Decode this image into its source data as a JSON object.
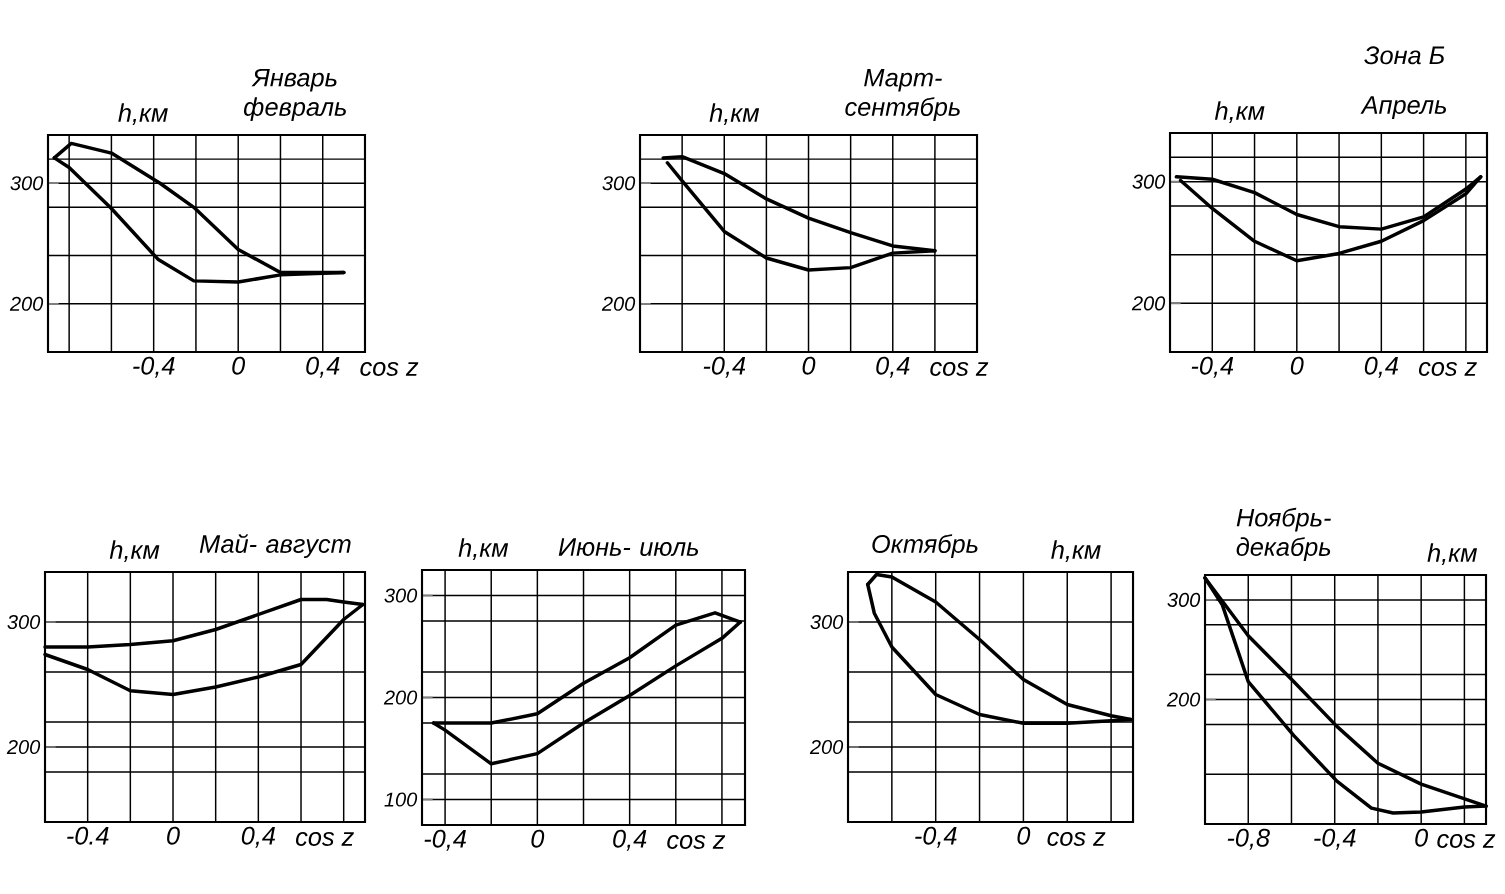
{
  "chart_data": [
    {
      "type": "line",
      "title": "Январь февраль",
      "xlabel": "cos z",
      "ylabel": "h,км",
      "grid": true,
      "xlim": [
        -0.9,
        0.6
      ],
      "ylim": [
        160,
        340
      ],
      "xticks": [
        {
          "value": -0.8,
          "label": null
        },
        {
          "value": -0.6,
          "label": null
        },
        {
          "value": -0.4,
          "label": "-0,4"
        },
        {
          "value": -0.2,
          "label": null
        },
        0,
        {
          "value": 0.2,
          "label": null
        },
        {
          "value": 0.4,
          "label": "0,4"
        }
      ],
      "yticks": [
        200,
        {
          "value": 240,
          "label": null
        },
        {
          "value": 280,
          "label": null
        },
        300,
        {
          "value": 320,
          "label": null
        }
      ],
      "series": [
        {
          "color": "#000000",
          "x": [
            -0.87,
            -0.79,
            -0.6,
            -0.37,
            -0.21,
            0,
            0.2,
            0.5
          ],
          "values": [
            321,
            333,
            325,
            300,
            280,
            245,
            226,
            226
          ]
        },
        {
          "color": "#000000",
          "x": [
            0.5,
            0.2,
            0,
            -0.21,
            -0.38,
            -0.6,
            -0.8,
            -0.87
          ],
          "values": [
            226,
            224,
            218,
            219,
            237,
            279,
            313,
            321
          ]
        }
      ]
    },
    {
      "type": "line",
      "title": "Март- сентябрь",
      "xlabel": "cos z",
      "ylabel": "h,км",
      "grid": true,
      "xlim": [
        -0.8,
        0.8
      ],
      "ylim": [
        160,
        340
      ],
      "xticks": [
        {
          "value": -0.6,
          "label": null
        },
        {
          "value": -0.4,
          "label": "-0,4"
        },
        {
          "value": -0.2,
          "label": null
        },
        0,
        {
          "value": 0.2,
          "label": null
        },
        {
          "value": 0.4,
          "label": "0,4"
        },
        {
          "value": 0.6,
          "label": null
        }
      ],
      "yticks": [
        200,
        {
          "value": 240,
          "label": null
        },
        {
          "value": 280,
          "label": null
        },
        300,
        {
          "value": 320,
          "label": null
        }
      ],
      "series": [
        {
          "color": "#000000",
          "x": [
            -0.69,
            -0.6,
            -0.4,
            -0.2,
            0,
            0.2,
            0.4,
            0.6
          ],
          "values": [
            321,
            322,
            308,
            287,
            271,
            259,
            248,
            244
          ]
        },
        {
          "color": "#000000",
          "x": [
            0.6,
            0.4,
            0.2,
            0,
            -0.2,
            -0.4,
            -0.6,
            -0.67
          ],
          "values": [
            244,
            242,
            230,
            228,
            238,
            260,
            302,
            317
          ]
        }
      ]
    },
    {
      "type": "line",
      "title": "Апрель",
      "xlabel": "cos z",
      "ylabel": "h,км",
      "annotations": [
        "Зона Б"
      ],
      "grid": true,
      "xlim": [
        -0.6,
        0.9
      ],
      "ylim": [
        160,
        340
      ],
      "xticks": [
        {
          "value": -0.4,
          "label": "-0,4"
        },
        {
          "value": -0.2,
          "label": null
        },
        0,
        {
          "value": 0.2,
          "label": null
        },
        {
          "value": 0.4,
          "label": "0,4"
        },
        {
          "value": 0.6,
          "label": null
        },
        {
          "value": 0.8,
          "label": null
        }
      ],
      "yticks": [
        200,
        {
          "value": 240,
          "label": null
        },
        {
          "value": 280,
          "label": null
        },
        300,
        {
          "value": 320,
          "label": null
        }
      ],
      "series": [
        {
          "color": "#000000",
          "x": [
            -0.57,
            -0.4,
            -0.2,
            0,
            0.2,
            0.4,
            0.6,
            0.8,
            0.87
          ],
          "values": [
            304,
            302,
            291,
            273,
            263,
            261,
            271,
            294,
            304
          ]
        },
        {
          "color": "#000000",
          "x": [
            0.87,
            0.8,
            0.6,
            0.4,
            0.2,
            0,
            -0.2,
            -0.4,
            -0.55
          ],
          "values": [
            304,
            290,
            268,
            251,
            241,
            235,
            251,
            278,
            301
          ]
        }
      ]
    },
    {
      "type": "line",
      "title": "Май- август",
      "xlabel": "cos z",
      "ylabel": "h,км",
      "grid": true,
      "xlim": [
        -0.6,
        0.9
      ],
      "ylim": [
        140,
        340
      ],
      "xticks": [
        {
          "value": -0.4,
          "label": "-0.4"
        },
        {
          "value": -0.2,
          "label": null
        },
        0,
        {
          "value": 0.2,
          "label": null
        },
        {
          "value": 0.4,
          "label": "0,4"
        },
        {
          "value": 0.6,
          "label": null
        },
        {
          "value": 0.8,
          "label": null
        }
      ],
      "yticks": [
        {
          "value": 180,
          "label": null
        },
        200,
        {
          "value": 220,
          "label": null
        },
        {
          "value": 260,
          "label": null
        },
        300
      ],
      "series": [
        {
          "color": "#000000",
          "x": [
            -0.6,
            -0.4,
            -0.2,
            0,
            0.2,
            0.4,
            0.6,
            0.72,
            0.8,
            0.89
          ],
          "values": [
            280,
            280,
            282,
            285,
            294,
            306,
            318,
            318,
            316,
            314
          ]
        },
        {
          "color": "#000000",
          "x": [
            0.89,
            0.8,
            0.6,
            0.4,
            0.2,
            0,
            -0.2,
            -0.4,
            -0.6
          ],
          "values": [
            314,
            302,
            266,
            256,
            248,
            242,
            245,
            262,
            274
          ]
        }
      ]
    },
    {
      "type": "line",
      "title": "Июнь- июль",
      "xlabel": "cos z",
      "ylabel": "h,км",
      "grid": true,
      "xlim": [
        -0.5,
        0.9
      ],
      "ylim": [
        75,
        325
      ],
      "xticks": [
        {
          "value": -0.4,
          "label": "-0,4"
        },
        {
          "value": -0.2,
          "label": null
        },
        0,
        {
          "value": 0.2,
          "label": null
        },
        {
          "value": 0.4,
          "label": "0,4"
        },
        {
          "value": 0.6,
          "label": null
        },
        {
          "value": 0.8,
          "label": null
        }
      ],
      "yticks": [
        100,
        {
          "value": 125,
          "label": null
        },
        {
          "value": 175,
          "label": null
        },
        200,
        {
          "value": 225,
          "label": null
        },
        {
          "value": 275,
          "label": null
        },
        300
      ],
      "series": [
        {
          "color": "#000000",
          "x": [
            -0.45,
            -0.2,
            0,
            0.2,
            0.4,
            0.6,
            0.77,
            0.88
          ],
          "values": [
            175,
            175,
            184,
            214,
            239,
            271,
            283,
            274
          ]
        },
        {
          "color": "#000000",
          "x": [
            0.88,
            0.8,
            0.6,
            0.4,
            0.2,
            0,
            -0.2,
            -0.4,
            -0.45
          ],
          "values": [
            274,
            258,
            231,
            202,
            175,
            145,
            135,
            168,
            175
          ]
        }
      ]
    },
    {
      "type": "line",
      "title": "Октябрь",
      "xlabel": "cos z",
      "ylabel": "h,км",
      "grid": true,
      "xlim": [
        -0.8,
        0.5
      ],
      "ylim": [
        140,
        340
      ],
      "xticks": [
        {
          "value": -0.6,
          "label": null
        },
        {
          "value": -0.4,
          "label": "-0,4"
        },
        {
          "value": -0.2,
          "label": null
        },
        0,
        {
          "value": 0.2,
          "label": null
        },
        {
          "value": 0.4,
          "label": null
        }
      ],
      "yticks": [
        {
          "value": 180,
          "label": null
        },
        200,
        {
          "value": 220,
          "label": null
        },
        {
          "value": 260,
          "label": null
        },
        300
      ],
      "series": [
        {
          "color": "#000000",
          "x": [
            -0.71,
            -0.67,
            -0.6,
            -0.4,
            -0.2,
            0,
            0.2,
            0.4,
            0.49
          ],
          "values": [
            330,
            338,
            336,
            316,
            286,
            254,
            234,
            225,
            222
          ]
        },
        {
          "color": "#000000",
          "x": [
            0.49,
            0.4,
            0.2,
            0,
            -0.2,
            -0.4,
            -0.6,
            -0.68,
            -0.71
          ],
          "values": [
            222,
            221,
            219,
            219,
            226,
            242,
            280,
            307,
            330
          ]
        }
      ]
    },
    {
      "type": "line",
      "title": "Ноябрь- декабрь",
      "xlabel": "cos z",
      "ylabel": "h,км",
      "grid": true,
      "xlim": [
        -1.0,
        0.3
      ],
      "ylim": [
        75,
        325
      ],
      "xticks": [
        {
          "value": -0.8,
          "label": "-0,8"
        },
        {
          "value": -0.6,
          "label": null
        },
        {
          "value": -0.4,
          "label": "-0,4"
        },
        {
          "value": -0.2,
          "label": null
        },
        0,
        {
          "value": 0.2,
          "label": null
        }
      ],
      "yticks": [
        {
          "value": 125,
          "label": null
        },
        {
          "value": 175,
          "label": null
        },
        200,
        {
          "value": 225,
          "label": null
        },
        {
          "value": 275,
          "label": null
        },
        300
      ],
      "series": [
        {
          "color": "#000000",
          "x": [
            -1.0,
            -0.8,
            -0.59,
            -0.39,
            -0.2,
            0,
            0.3
          ],
          "values": [
            322,
            264,
            218,
            173,
            136,
            115,
            93
          ]
        },
        {
          "color": "#000000",
          "x": [
            0.3,
            0.2,
            0,
            -0.13,
            -0.23,
            -0.39,
            -0.59,
            -0.8,
            -0.92,
            -1.0
          ],
          "values": [
            93,
            92,
            87,
            86,
            91,
            118,
            164,
            218,
            295,
            322
          ]
        }
      ]
    }
  ]
}
